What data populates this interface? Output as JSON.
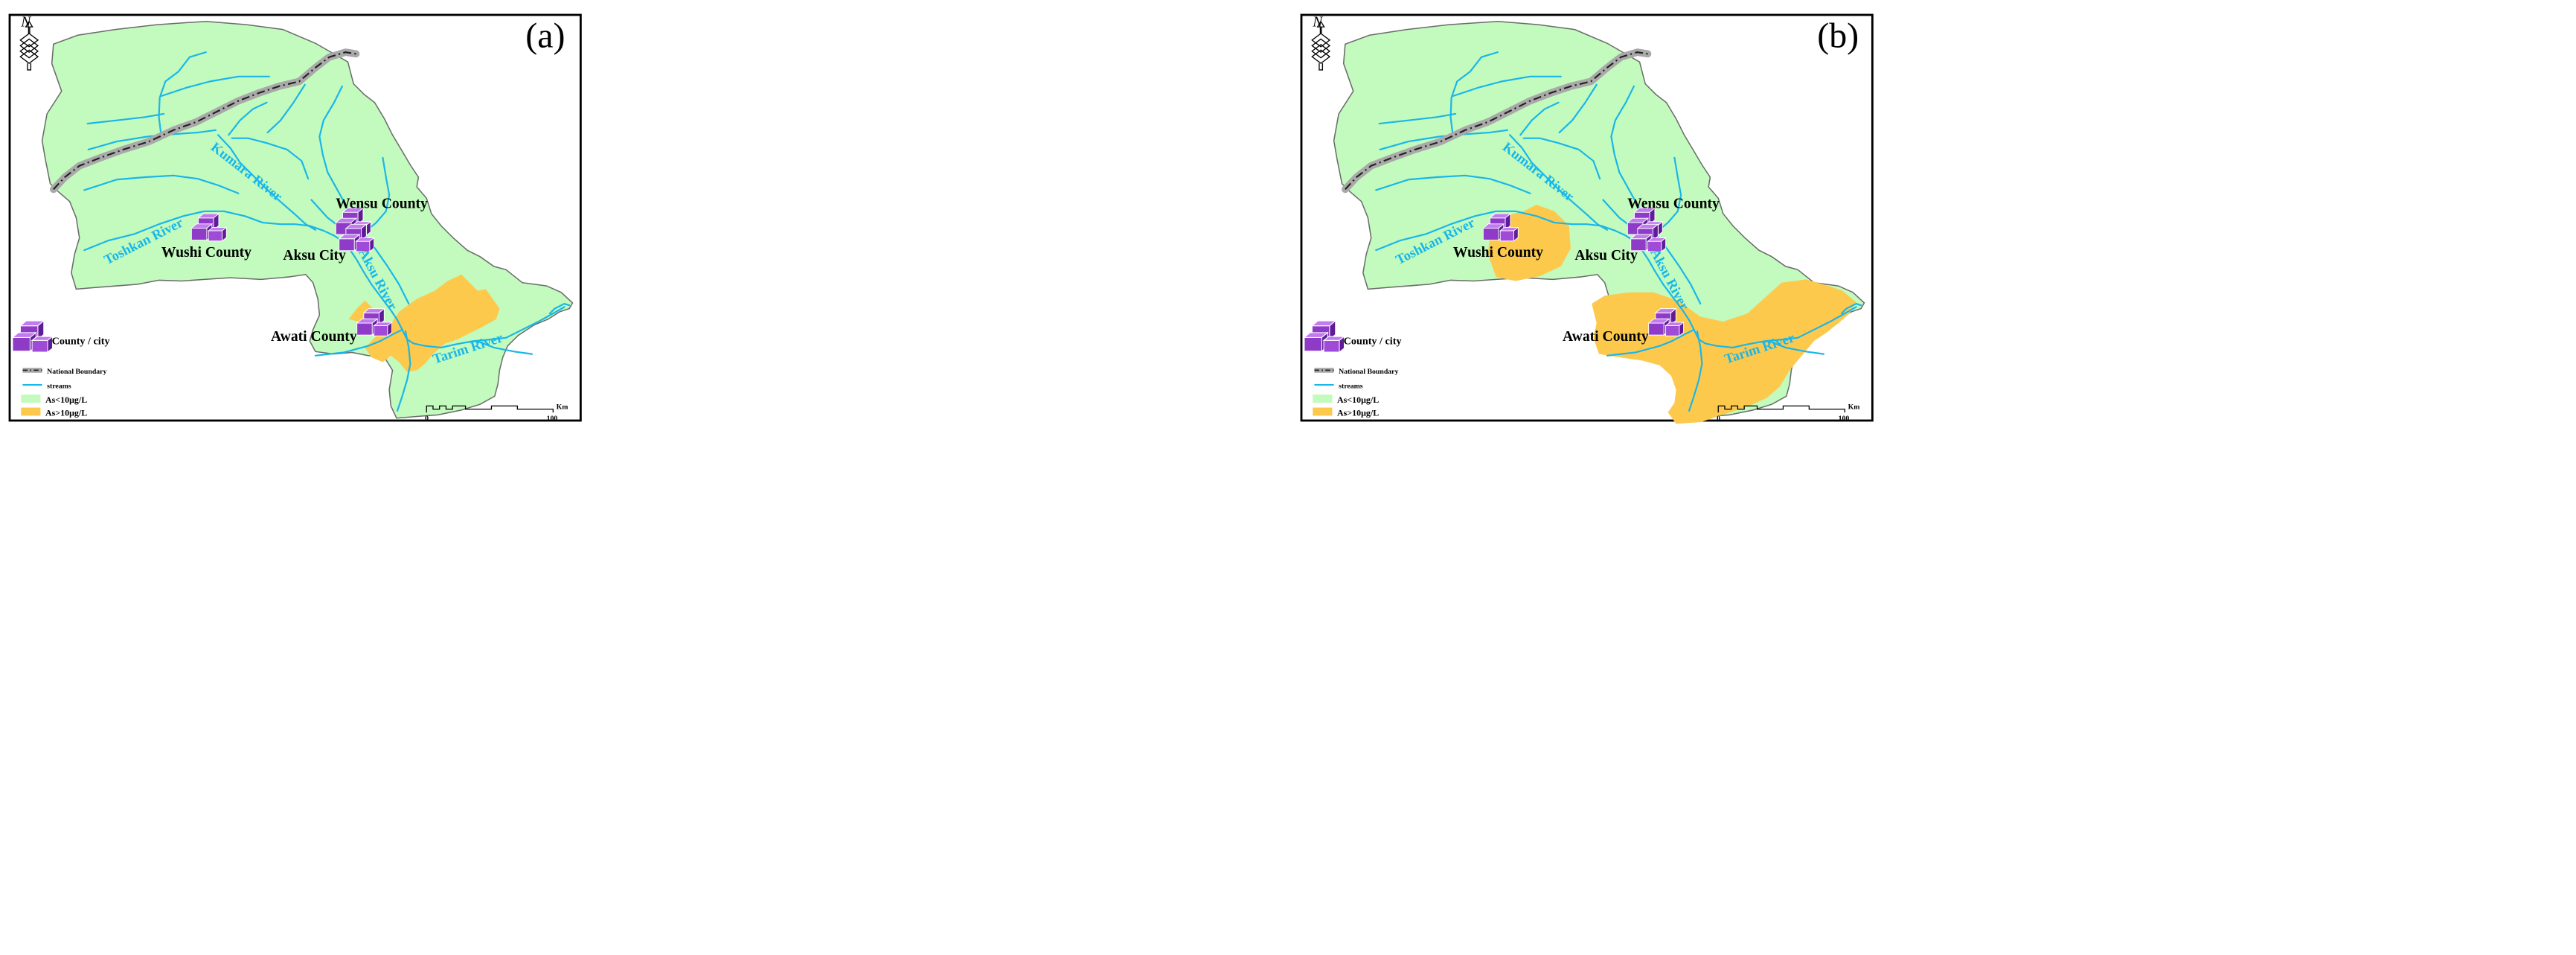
{
  "panels": [
    {
      "id": "a",
      "label": "(a)",
      "places": {
        "wensu": "Wensu County",
        "wushi": "Wushi County",
        "aksu": "Aksu City",
        "awati": "Awati County"
      },
      "rivers": {
        "toshkan": "Toshkan River",
        "kumara": "Kumara River",
        "aksu": "Aksu River",
        "tarim": "Tarim River"
      },
      "legend": {
        "county_city": "County / city",
        "national_boundary": "National Boundary",
        "streams": "streams",
        "low_as": "As<10μg/L",
        "high_as": "As>10μg/L"
      },
      "scale": {
        "unit": "Km",
        "min_label": "0",
        "max_label": "100"
      }
    },
    {
      "id": "b",
      "label": "(b)",
      "places": {
        "wensu": "Wensu County",
        "wushi": "Wushi County",
        "aksu": "Aksu City",
        "awati": "Awati County"
      },
      "rivers": {
        "toshkan": "Toshkan River",
        "kumara": "Kumara River",
        "aksu": "Aksu River",
        "tarim": "Tarim River"
      },
      "legend": {
        "county_city": "County / city",
        "national_boundary": "National Boundary",
        "streams": "streams",
        "low_as": "As<10μg/L",
        "high_as": "As>10μg/L"
      },
      "scale": {
        "unit": "Km",
        "min_label": "0",
        "max_label": "100"
      }
    }
  ],
  "colors": {
    "region_fill": "#c2fbbd",
    "high_as_fill": "#fdc94d",
    "stream": "#19b6ea",
    "boundary_halo": "#a9a9a9",
    "county_icon": "#8e3cc7"
  }
}
